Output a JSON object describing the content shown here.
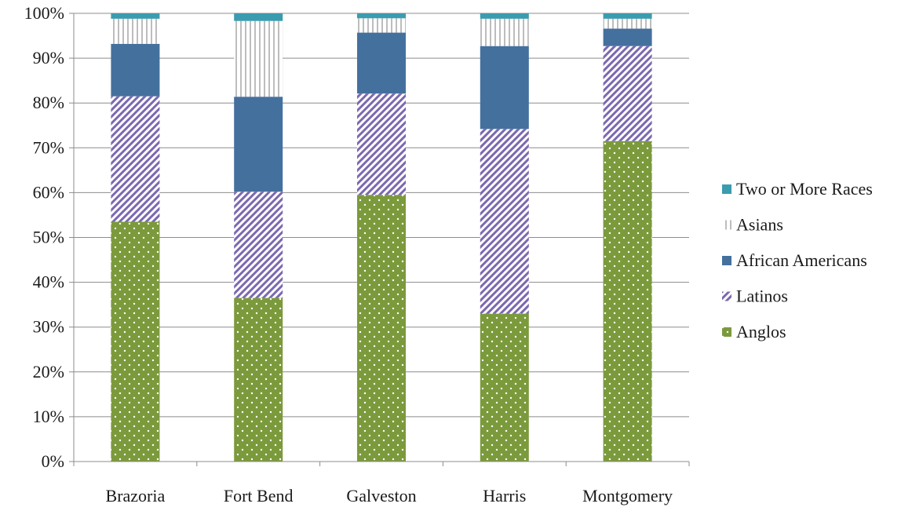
{
  "chart_data": {
    "type": "bar",
    "stacked": true,
    "categories": [
      "Brazoria",
      "Fort Bend",
      "Galveston",
      "Harris",
      "Montgomery"
    ],
    "series": [
      {
        "name": "Anglos",
        "values": [
          53.5,
          36.5,
          59.5,
          33.0,
          71.5
        ],
        "color": "#7b9a3c",
        "pattern": "dots"
      },
      {
        "name": "Latinos",
        "values": [
          28.0,
          23.7,
          22.6,
          41.2,
          21.2
        ],
        "color": "#7b68b0",
        "pattern": "diagonal-stripes"
      },
      {
        "name": "African Americans",
        "values": [
          11.7,
          21.2,
          13.6,
          18.5,
          3.9
        ],
        "color": "#44709e",
        "pattern": "solid"
      },
      {
        "name": "Asians",
        "values": [
          5.6,
          16.9,
          3.2,
          6.1,
          2.2
        ],
        "color": "#bdbdbd",
        "pattern": "vertical-stripes"
      },
      {
        "name": "Two or More Races",
        "values": [
          1.2,
          1.7,
          1.1,
          1.2,
          1.2
        ],
        "color": "#3a9cae",
        "pattern": "solid"
      }
    ],
    "y_ticks": [
      "0%",
      "10%",
      "20%",
      "30%",
      "40%",
      "50%",
      "60%",
      "70%",
      "80%",
      "90%",
      "100%"
    ],
    "ylim": [
      0,
      100
    ],
    "grid": true,
    "legend_position": "right",
    "legend_order": [
      "Two or More Races",
      "Asians",
      "African Americans",
      "Latinos",
      "Anglos"
    ],
    "title": "",
    "xlabel": "",
    "ylabel": ""
  }
}
